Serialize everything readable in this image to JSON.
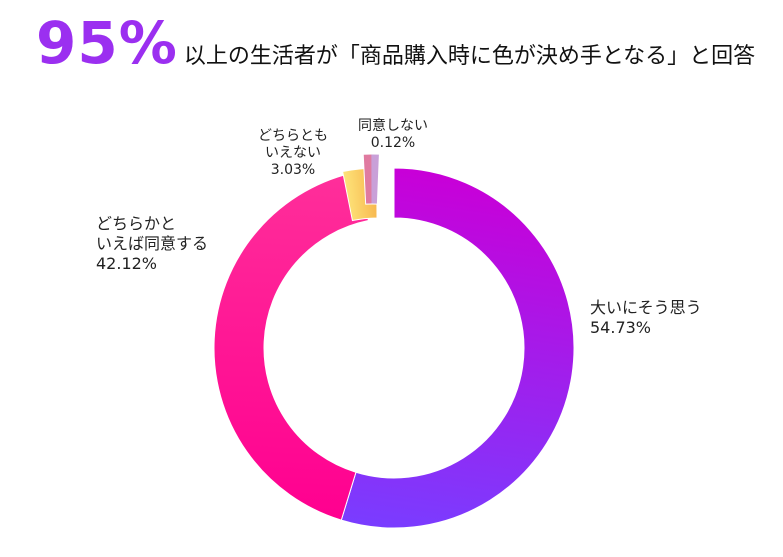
{
  "headline": {
    "highlight": "95%",
    "text": "以上の生活者が「商品購入時に色が決め手となる」と回答",
    "highlight_color": "#9b2ff0"
  },
  "chart_data": {
    "type": "pie",
    "donut": true,
    "categories": [
      "大いにそう思う",
      "どちらかといえば同意する",
      "どちらともいえない",
      "同意しない"
    ],
    "values": [
      54.73,
      42.12,
      3.03,
      0.12
    ],
    "value_labels": [
      "54.73%",
      "42.12%",
      "3.03%",
      "0.12%"
    ],
    "label_lines": [
      [
        "大いにそう思う"
      ],
      [
        "どちらかと",
        "いえば同意する"
      ],
      [
        "どちらとも",
        "いえない"
      ],
      [
        "同意しない"
      ]
    ],
    "colors": [
      "#a800e0",
      "#f0008a",
      "#f6d35a",
      "#d46aa0"
    ],
    "gradients": [
      [
        "#c800d8",
        "#7a3cff"
      ],
      [
        "#ff0090",
        "#ff2f9a"
      ],
      [
        "#fde47a",
        "#f7b24a"
      ],
      [
        "#e07aa0",
        "#c9a0d8"
      ]
    ],
    "title": "",
    "legend": "none",
    "start": "top",
    "direction": "clockwise"
  }
}
